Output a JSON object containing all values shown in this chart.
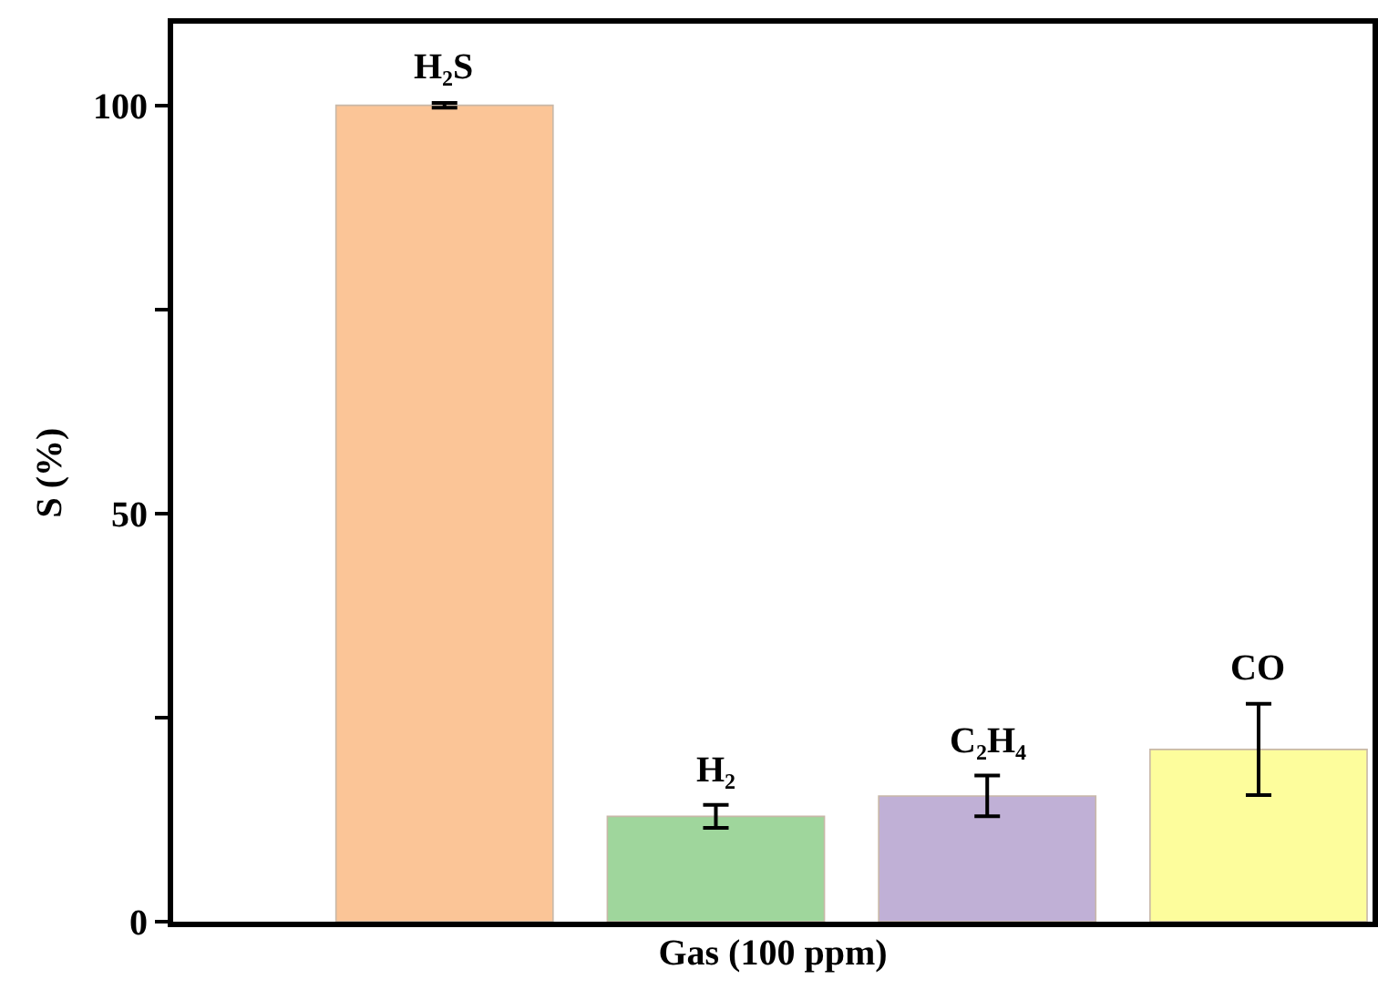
{
  "chart_data": {
    "type": "bar",
    "xlabel": "Gas (100 ppm)",
    "ylabel": "S (%)",
    "categories": [
      "H₂S",
      "H₂",
      "C₂H₄",
      "CO"
    ],
    "values": [
      100,
      12.9,
      15.4,
      21.1
    ],
    "errors": [
      0.3,
      1.4,
      2.5,
      5.6
    ],
    "colors": [
      "#fbc597",
      "#9fd69c",
      "#c0b0d6",
      "#fdfd9c"
    ],
    "ylim": [
      0,
      110
    ],
    "yticks": [
      0,
      {
        "value": 25,
        "label": null
      },
      50,
      {
        "value": 75,
        "label": null
      },
      100
    ],
    "tick_labels": "y"
  }
}
